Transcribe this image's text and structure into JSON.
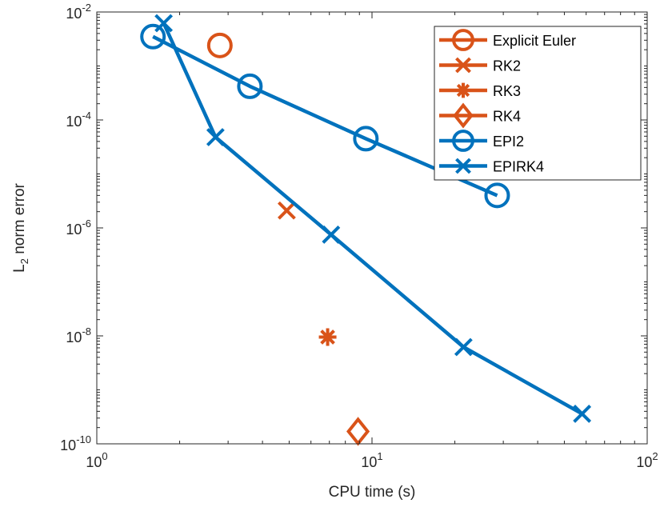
{
  "chart_data": {
    "type": "line",
    "xscale": "log",
    "yscale": "log",
    "xlim": [
      1,
      100
    ],
    "ylim": [
      1e-10,
      0.01
    ],
    "xlabel": "CPU time (s)",
    "ylabel_main": "L",
    "ylabel_sub": "2",
    "ylabel_rest": " norm error",
    "x_ticks": [
      {
        "value": 1,
        "base": "10",
        "exp": "0"
      },
      {
        "value": 10,
        "base": "10",
        "exp": "1"
      },
      {
        "value": 100,
        "base": "10",
        "exp": "2"
      }
    ],
    "y_ticks": [
      {
        "value": 0.01,
        "base": "10",
        "exp": "-2"
      },
      {
        "value": 0.0001,
        "base": "10",
        "exp": "-4"
      },
      {
        "value": 1e-06,
        "base": "10",
        "exp": "-6"
      },
      {
        "value": 1e-08,
        "base": "10",
        "exp": "-8"
      },
      {
        "value": 1e-10,
        "base": "10",
        "exp": "-10"
      }
    ],
    "grid": false,
    "legend_position": "top-right",
    "series": [
      {
        "name": "Explicit Euler",
        "color": "#D95319",
        "marker": "circle",
        "x": [
          2.8
        ],
        "y": [
          0.0024
        ]
      },
      {
        "name": "RK2",
        "color": "#D95319",
        "marker": "x",
        "x": [
          4.9
        ],
        "y": [
          2.1e-06
        ]
      },
      {
        "name": "RK3",
        "color": "#D95319",
        "marker": "asterisk",
        "x": [
          6.9
        ],
        "y": [
          9.5e-09
        ]
      },
      {
        "name": "RK4",
        "color": "#D95319",
        "marker": "diamond",
        "x": [
          8.9
        ],
        "y": [
          1.7e-10
        ]
      },
      {
        "name": "EPI2",
        "color": "#0072BD",
        "marker": "circle",
        "x": [
          1.6,
          3.6,
          9.5,
          28.5
        ],
        "y": [
          0.0035,
          0.00042,
          4.5e-05,
          4e-06
        ]
      },
      {
        "name": "EPIRK4",
        "color": "#0072BD",
        "marker": "x",
        "x": [
          1.75,
          2.7,
          7.1,
          21.5,
          58
        ],
        "y": [
          0.0062,
          4.8e-05,
          7.5e-07,
          6.2e-09,
          3.6e-10
        ]
      }
    ]
  }
}
